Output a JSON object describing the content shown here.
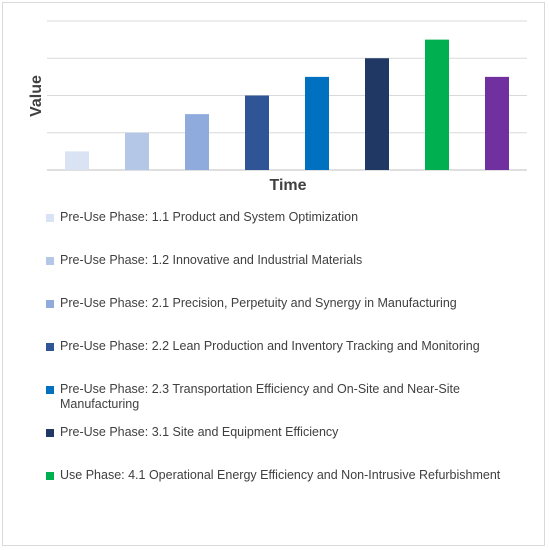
{
  "chart_data": {
    "type": "bar",
    "xlabel": "Time",
    "ylabel": "Value",
    "ylim": [
      0,
      8
    ],
    "grid": true,
    "legend_position": "bottom",
    "series": [
      {
        "name": "Pre-Use Phase: 1.1 Product and System Optimization",
        "value": 1,
        "color": "#dae3f3"
      },
      {
        "name": "Pre-Use Phase: 1.2 Innovative and Industrial Materials",
        "value": 2,
        "color": "#b4c7e7"
      },
      {
        "name": "Pre-Use Phase: 2.1 Precision, Perpetuity and Synergy in Manufacturing",
        "value": 3,
        "color": "#8faadc"
      },
      {
        "name": "Pre-Use Phase: 2.2 Lean Production and Inventory Tracking and Monitoring",
        "value": 4,
        "color": "#2f5597"
      },
      {
        "name": "Pre-Use Phase: 2.3 Transportation Efficiency and On-Site and Near-Site Manufacturing",
        "value": 5,
        "color": "#0070c0"
      },
      {
        "name": "Pre-Use Phase: 3.1 Site and Equipment Efficiency",
        "value": 6,
        "color": "#1f3864"
      },
      {
        "name": "Use Phase: 4.1 Operational Energy Efficiency and Non-Intrusive Refurbishment",
        "value": 7,
        "color": "#00b050"
      },
      {
        "name": "",
        "value": 5,
        "color": "#7030a0"
      }
    ]
  }
}
